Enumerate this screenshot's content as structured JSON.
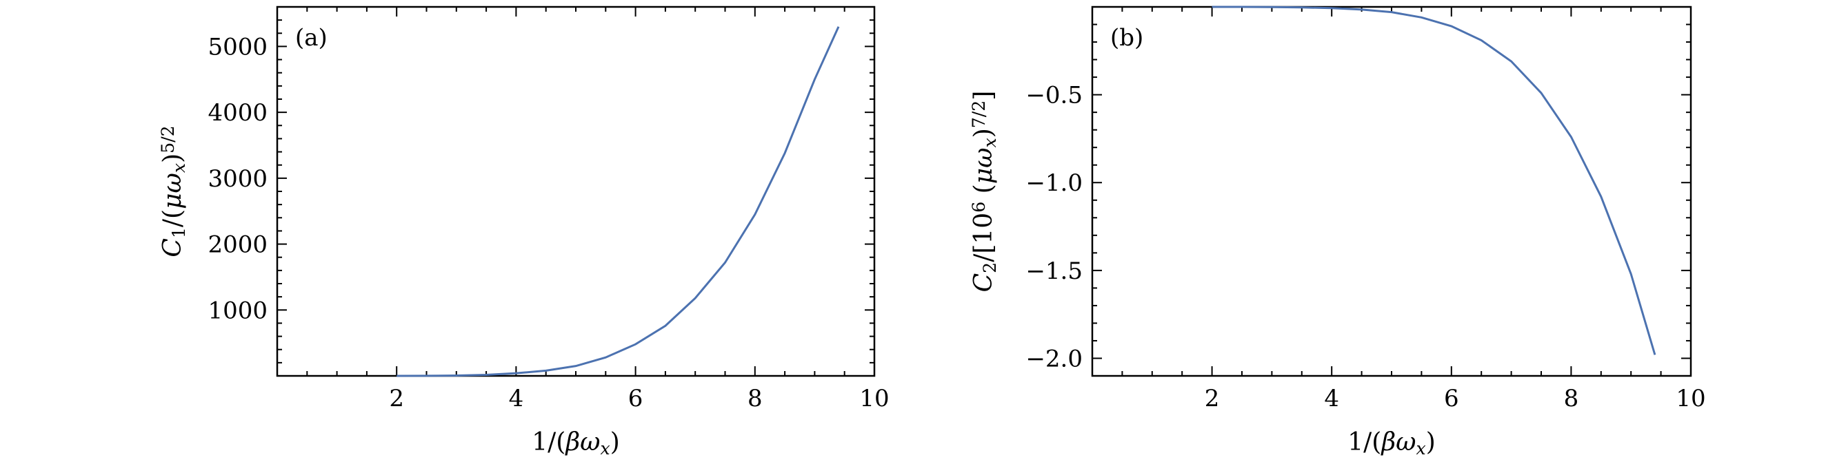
{
  "chart_data": [
    {
      "type": "line",
      "panel_label": "(a)",
      "xlabel": "1/(βω_x)",
      "ylabel": "C_1/(μω_x)^{5/2}",
      "xlim": [
        0,
        10
      ],
      "ylim": [
        0,
        5600
      ],
      "xticks": [
        2,
        4,
        6,
        8,
        10
      ],
      "yticks": [
        1000,
        2000,
        3000,
        4000,
        5000
      ],
      "xtick_labels": [
        "2",
        "4",
        "6",
        "8",
        "10"
      ],
      "ytick_labels": [
        "1000",
        "2000",
        "3000",
        "4000",
        "5000"
      ],
      "grid": false,
      "line_color": "#4c72b0",
      "series": [
        {
          "x": [
            2.0,
            2.5,
            3.0,
            3.5,
            4.0,
            4.5,
            5.0,
            5.5,
            6.0,
            6.5,
            7.0,
            7.5,
            8.0,
            8.5,
            9.0,
            9.4
          ],
          "y": [
            0,
            1,
            5,
            15,
            40,
            80,
            150,
            280,
            480,
            760,
            1180,
            1720,
            2450,
            3380,
            4500,
            5300
          ]
        }
      ]
    },
    {
      "type": "line",
      "panel_label": "(b)",
      "xlabel": "1/(βω_x)",
      "ylabel": "C_2/[10^6 (μω_x)^{7/2}]",
      "xlim": [
        0,
        10
      ],
      "ylim": [
        -2.1,
        0
      ],
      "xticks": [
        2,
        4,
        6,
        8,
        10
      ],
      "yticks": [
        -0.5,
        -1.0,
        -1.5,
        -2.0
      ],
      "xtick_labels": [
        "2",
        "4",
        "6",
        "8",
        "10"
      ],
      "ytick_labels": [
        "−0.5",
        "−1.0",
        "−1.5",
        "−2.0"
      ],
      "grid": false,
      "line_color": "#4c72b0",
      "series": [
        {
          "x": [
            2.0,
            2.5,
            3.0,
            3.5,
            4.0,
            4.5,
            5.0,
            5.5,
            6.0,
            6.5,
            7.0,
            7.5,
            8.0,
            8.5,
            9.0,
            9.4
          ],
          "y": [
            0,
            0,
            -0.001,
            -0.003,
            -0.007,
            -0.015,
            -0.03,
            -0.06,
            -0.11,
            -0.19,
            -0.31,
            -0.49,
            -0.74,
            -1.08,
            -1.52,
            -1.98
          ]
        }
      ]
    }
  ]
}
